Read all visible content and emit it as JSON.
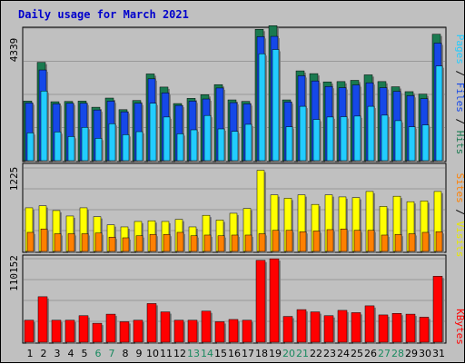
{
  "title": "Daily usage for March 2021",
  "colors": {
    "background": "#c0c0c0",
    "plot_bg": "#c0c0c0",
    "title": "#0000cc",
    "hits": "#1a7a50",
    "files": "#1548e8",
    "pages": "#22ccff",
    "visits": "#ffff00",
    "sites": "#ff8000",
    "kbytes": "#ff0000",
    "weekend_day": "#1a8a60",
    "weekday": "#000000"
  },
  "chart_data": [
    {
      "type": "bar",
      "panel": "hits-files-pages",
      "label": {
        "pages": "Pages",
        "files": "Files",
        "hits": "Hits",
        "sep": " / "
      },
      "ymax_label": "4339",
      "ymax": 4339,
      "categories": [
        "1",
        "2",
        "3",
        "4",
        "5",
        "6",
        "7",
        "8",
        "9",
        "10",
        "11",
        "12",
        "13",
        "14",
        "15",
        "16",
        "17",
        "18",
        "19",
        "20",
        "21",
        "22",
        "23",
        "24",
        "25",
        "26",
        "27",
        "28",
        "29",
        "30",
        "31"
      ],
      "series": [
        {
          "name": "Hits",
          "color": "#1a7a50",
          "values": [
            1950,
            3220,
            1930,
            1940,
            1950,
            1750,
            2050,
            1670,
            1970,
            2840,
            2410,
            1870,
            2040,
            2160,
            2490,
            1990,
            1940,
            4300,
            4420,
            1990,
            2940,
            2850,
            2580,
            2590,
            2630,
            2810,
            2590,
            2420,
            2260,
            2180,
            4140
          ]
        },
        {
          "name": "Files",
          "color": "#1548e8",
          "values": [
            1890,
            2970,
            1860,
            1880,
            1880,
            1660,
            1950,
            1600,
            1880,
            2680,
            2220,
            1810,
            1950,
            2020,
            2380,
            1900,
            1860,
            4060,
            4070,
            1920,
            2780,
            2610,
            2430,
            2390,
            2480,
            2550,
            2390,
            2270,
            2130,
            2030,
            3850
          ]
        },
        {
          "name": "Pages",
          "color": "#22ccff",
          "values": [
            910,
            2280,
            940,
            790,
            1090,
            730,
            1210,
            850,
            950,
            1880,
            1430,
            880,
            1010,
            1480,
            1040,
            960,
            1190,
            3500,
            3640,
            1110,
            1780,
            1350,
            1430,
            1440,
            1460,
            1780,
            1490,
            1310,
            1110,
            1170,
            3100
          ]
        }
      ]
    },
    {
      "type": "bar",
      "panel": "visits-sites",
      "label": {
        "sites": "Sites",
        "visits": "Visits",
        "sep": " / "
      },
      "ymax_label": "1225",
      "ymax": 1225,
      "categories": [
        "1",
        "2",
        "3",
        "4",
        "5",
        "6",
        "7",
        "8",
        "9",
        "10",
        "11",
        "12",
        "13",
        "14",
        "15",
        "16",
        "17",
        "18",
        "19",
        "20",
        "21",
        "22",
        "23",
        "24",
        "25",
        "26",
        "27",
        "28",
        "29",
        "30",
        "31"
      ],
      "series": [
        {
          "name": "Visits",
          "color": "#ffff00",
          "values": [
            640,
            670,
            600,
            520,
            640,
            510,
            390,
            360,
            440,
            450,
            440,
            470,
            360,
            530,
            460,
            560,
            630,
            1190,
            830,
            780,
            830,
            690,
            830,
            800,
            790,
            880,
            660,
            810,
            730,
            740,
            880
          ]
        },
        {
          "name": "Sites",
          "color": "#ff8000",
          "values": [
            280,
            330,
            260,
            260,
            260,
            270,
            210,
            200,
            230,
            250,
            250,
            280,
            230,
            240,
            230,
            240,
            240,
            260,
            310,
            310,
            290,
            300,
            320,
            330,
            310,
            310,
            240,
            250,
            260,
            280,
            290
          ]
        }
      ]
    },
    {
      "type": "bar",
      "panel": "kbytes",
      "label": {
        "kbytes": "KBytes"
      },
      "ymax_label": "110152",
      "ymax": 110152,
      "categories": [
        "1",
        "2",
        "3",
        "4",
        "5",
        "6",
        "7",
        "8",
        "9",
        "10",
        "11",
        "12",
        "13",
        "14",
        "15",
        "16",
        "17",
        "18",
        "19",
        "20",
        "21",
        "22",
        "23",
        "24",
        "25",
        "26",
        "27",
        "28",
        "29",
        "30",
        "31"
      ],
      "series": [
        {
          "name": "KBytes",
          "color": "#ff0000",
          "values": [
            29000,
            60000,
            29000,
            29000,
            35000,
            25000,
            37000,
            27000,
            29000,
            51000,
            40000,
            29000,
            29000,
            41000,
            27000,
            30000,
            29000,
            108000,
            110000,
            34000,
            43000,
            40000,
            35000,
            42000,
            39000,
            48000,
            36000,
            38000,
            37000,
            33000,
            87000
          ]
        }
      ]
    }
  ]
}
